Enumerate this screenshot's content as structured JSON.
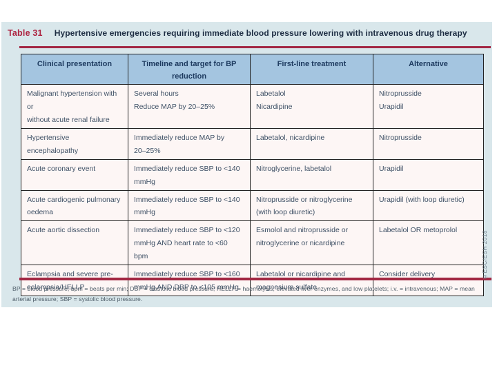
{
  "page": {
    "title_label": "Table 31",
    "title_text": "Hypertensive emergencies requiring immediate blood pressure lowering with intravenous drug therapy"
  },
  "table": {
    "headers": [
      "Clinical presentation",
      "Timeline and target for BP\nreduction",
      "First-line treatment",
      "Alternative"
    ],
    "rows": [
      [
        "Malignant hypertension with or\nwithout acute renal failure",
        "Several hours\nReduce MAP by 20–25%",
        "Labetalol\nNicardipine",
        "Nitroprusside\nUrapidil"
      ],
      [
        "Hypertensive encephalopathy",
        "Immediately reduce MAP by\n20–25%",
        "Labetalol, nicardipine",
        "Nitroprusside"
      ],
      [
        "Acute coronary event",
        "Immediately reduce SBP to <140\nmmHg",
        "Nitroglycerine, labetalol",
        "Urapidil"
      ],
      [
        "Acute cardiogenic pulmonary\noedema",
        "Immediately reduce SBP to <140\nmmHg",
        "Nitroprusside or nitroglycerine\n(with loop diuretic)",
        "Urapidil (with loop diuretic)"
      ],
      [
        "Acute aortic dissection",
        "Immediately reduce SBP to <120\nmmHg AND heart rate to <60\nbpm",
        "Esmolol and nitroprusside or\nnitroglycerine or nicardipine",
        "Labetalol OR metoprolol"
      ],
      [
        "Eclampsia and severe pre-\neclampsia/HELLP",
        "Immediately reduce SBP to <160\nmmHg AND DBP to <105 mmHg",
        "Labetalol or nicardipine and\nmagnesium sulfate",
        "Consider delivery"
      ]
    ]
  },
  "footnote": "BP = blood pressure; bpm = beats per min; DBP = diastolic blood pressure; HELLP = haemolysis, elevated liver enzymes, and low platelets; i.v. = intravenous; MAP = mean arterial pressure; SBP = systolic blood pressure.",
  "watermark": "©ESC/ESH 2018",
  "colors": {
    "accent_red": "#a22743",
    "title_label_red": "#ad2441",
    "card_bg": "#d9e7eb",
    "header_bg": "#a4c5e0",
    "row_bg": "#fdf6f5",
    "border": "#222222",
    "header_text": "#1d3a5f",
    "body_text": "#3e5065"
  }
}
